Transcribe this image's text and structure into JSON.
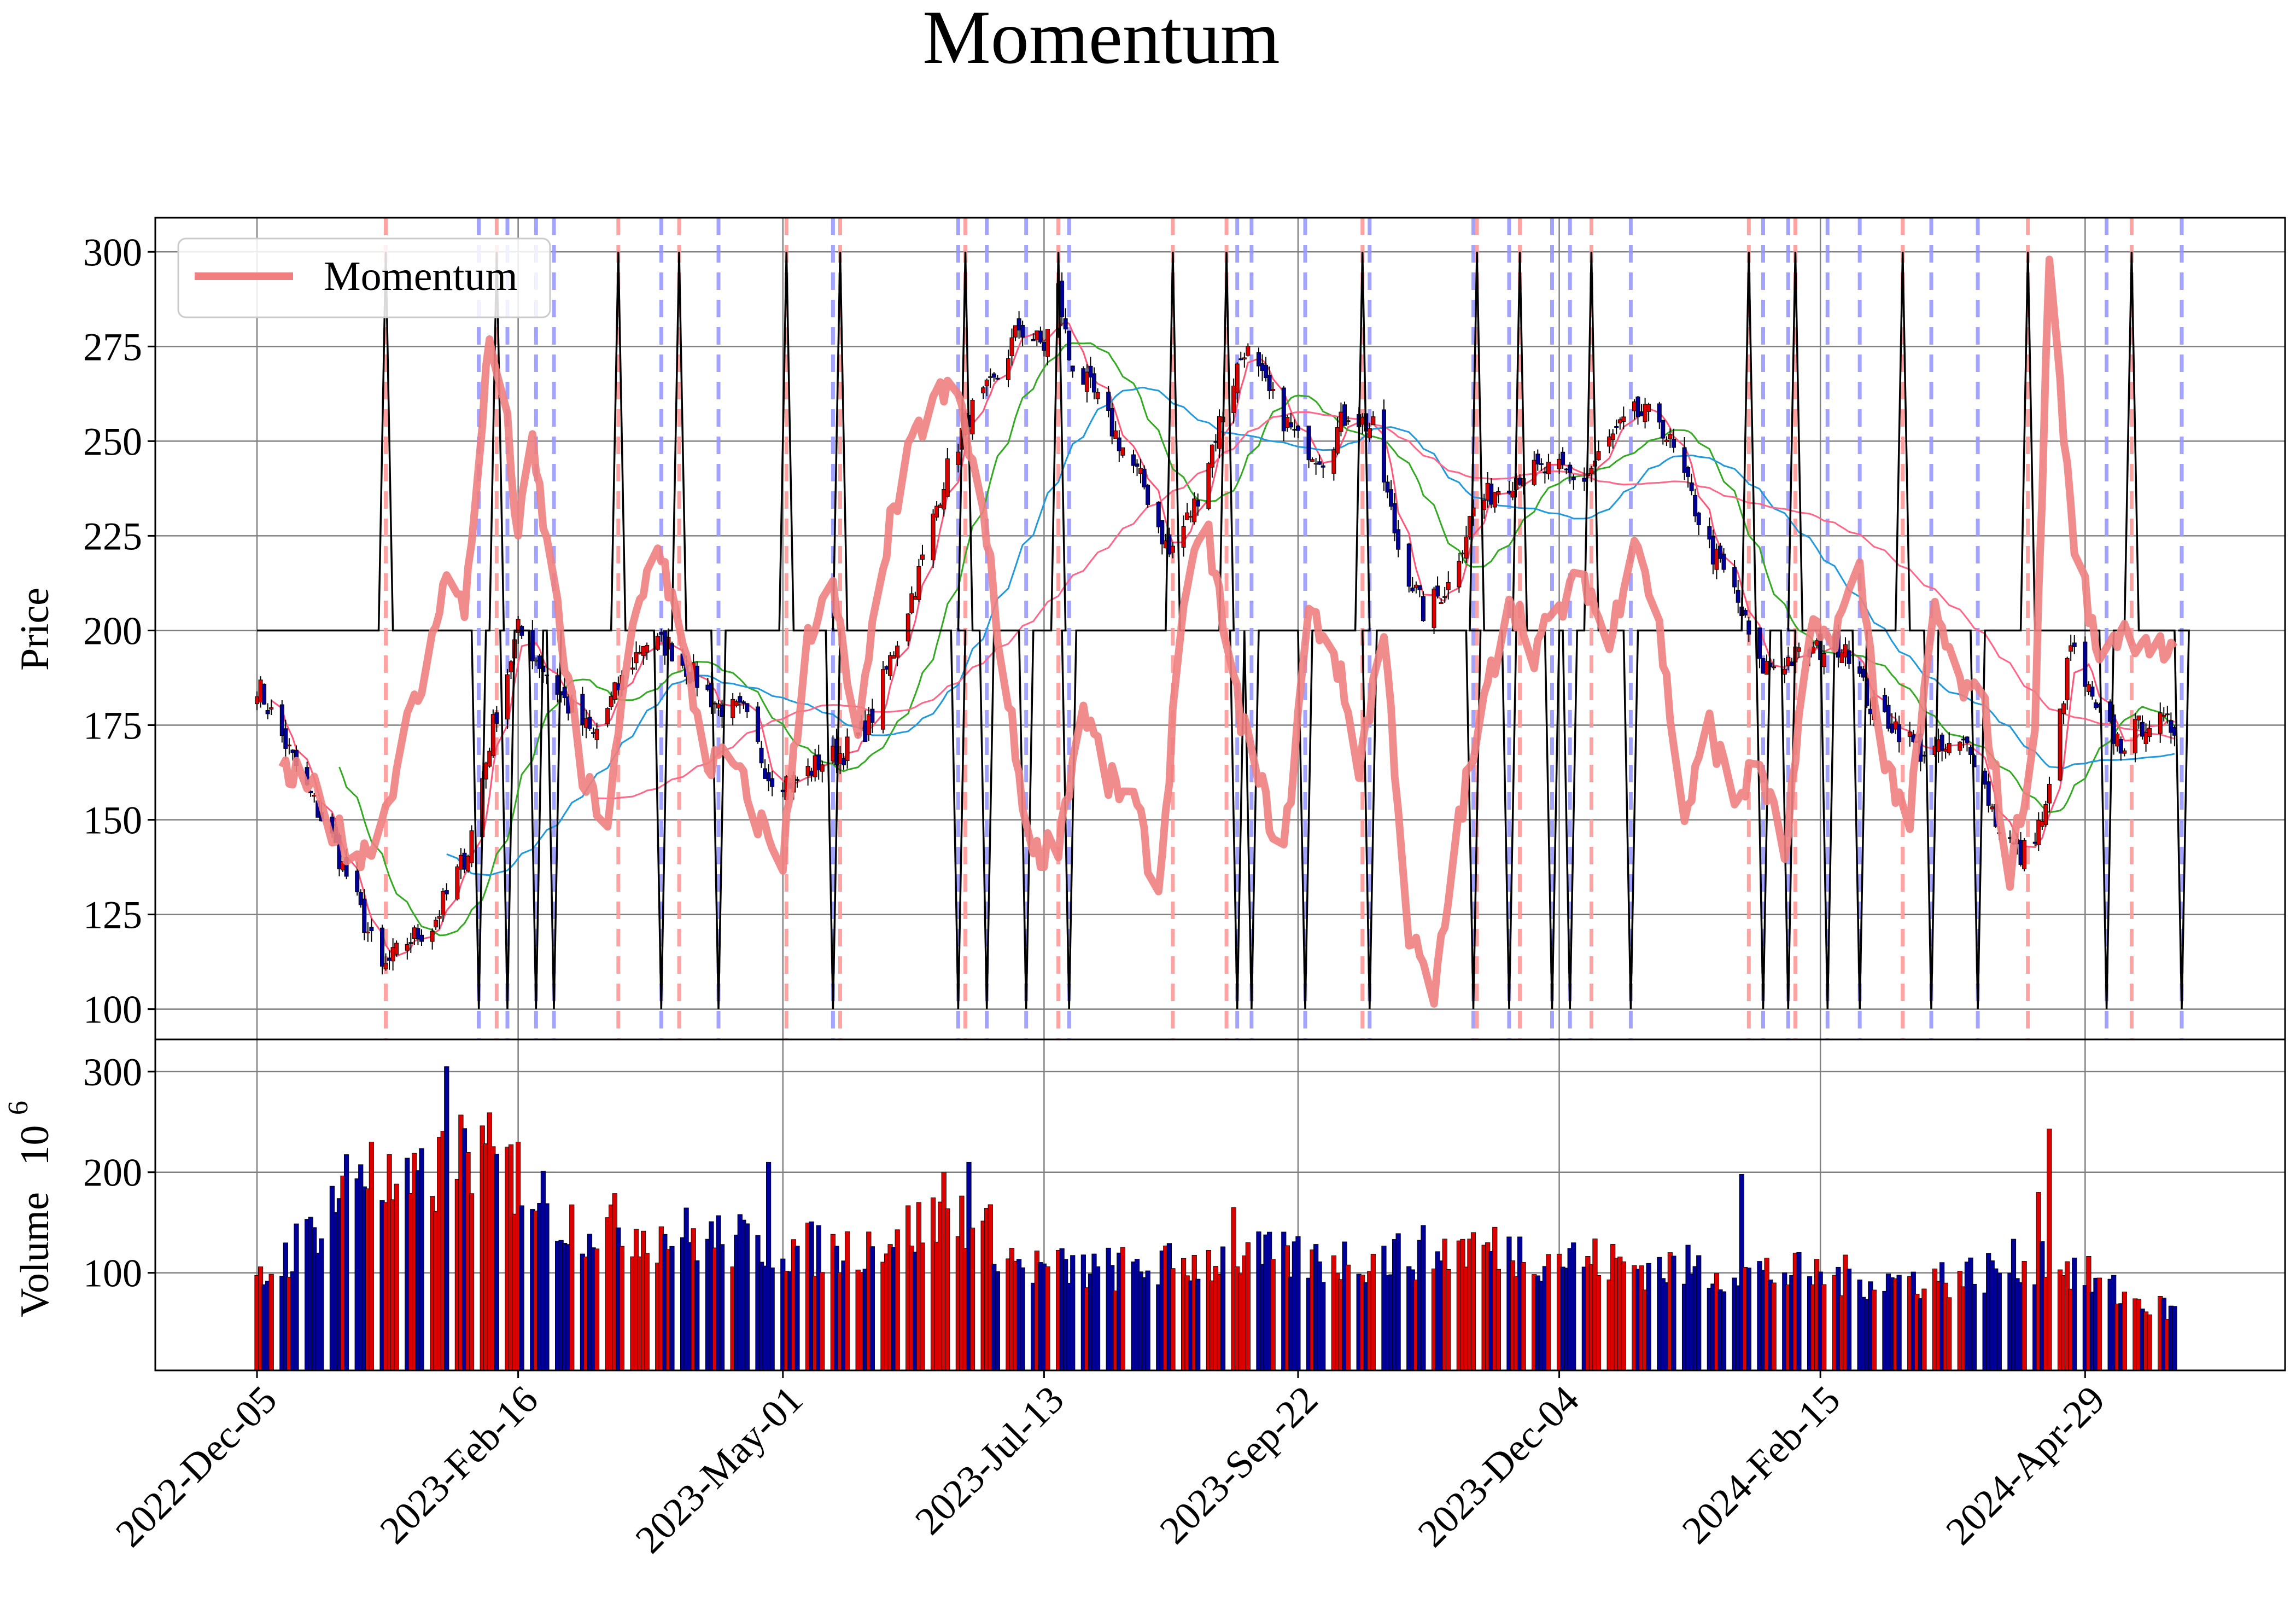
{
  "chart_data": {
    "type": "candlestick",
    "title": "Momentum",
    "price_panel": {
      "ylabel": "Price",
      "ylim": [
        92,
        309
      ],
      "yticks": [
        100,
        125,
        150,
        175,
        200,
        225,
        250,
        275,
        300
      ],
      "legend": {
        "label": "Momentum",
        "placement": "top-left",
        "color": "#f08080"
      },
      "signal_line": {
        "high": 300,
        "mid": 200,
        "low": 100
      }
    },
    "volume_panel": {
      "ylabel": "Volume",
      "exponent_label": "10",
      "exponent_power": "6",
      "ylim": [
        3,
        332
      ],
      "yticks": [
        100,
        200,
        300
      ],
      "up_color": "#dd0000",
      "down_color": "#000099"
    },
    "x_axis": {
      "date_range": [
        "2022-12-05",
        "2024-05-26"
      ],
      "tick_labels": [
        "2022-Dec-05",
        "2023-Feb-16",
        "2023-May-01",
        "2023-Jul-13",
        "2023-Sep-22",
        "2023-Dec-04",
        "2024-Feb-15",
        "2024-Apr-29"
      ],
      "tick_dates": [
        "2022-12-05",
        "2023-02-16",
        "2023-05-01",
        "2023-07-13",
        "2023-09-22",
        "2023-12-04",
        "2024-02-15",
        "2024-04-29"
      ]
    },
    "close_anchors": [
      [
        "2022-12-05",
        186
      ],
      [
        "2022-12-12",
        172
      ],
      [
        "2022-12-19",
        158
      ],
      [
        "2022-12-26",
        145
      ],
      [
        "2023-01-02",
        128
      ],
      [
        "2023-01-09",
        110
      ],
      [
        "2023-01-16",
        118
      ],
      [
        "2023-01-23",
        122
      ],
      [
        "2023-02-02",
        142
      ],
      [
        "2023-02-09",
        175
      ],
      [
        "2023-02-16",
        200
      ],
      [
        "2023-02-23",
        190
      ],
      [
        "2023-03-02",
        180
      ],
      [
        "2023-03-09",
        172
      ],
      [
        "2023-03-16",
        185
      ],
      [
        "2023-03-23",
        197
      ],
      [
        "2023-03-30",
        196
      ],
      [
        "2023-04-06",
        188
      ],
      [
        "2023-04-13",
        180
      ],
      [
        "2023-04-20",
        178
      ],
      [
        "2023-04-27",
        162
      ],
      [
        "2023-05-04",
        160
      ],
      [
        "2023-05-11",
        165
      ],
      [
        "2023-05-18",
        168
      ],
      [
        "2023-05-25",
        175
      ],
      [
        "2023-06-01",
        195
      ],
      [
        "2023-06-08",
        215
      ],
      [
        "2023-06-15",
        240
      ],
      [
        "2023-06-22",
        257
      ],
      [
        "2023-06-29",
        265
      ],
      [
        "2023-07-06",
        280
      ],
      [
        "2023-07-13",
        275
      ],
      [
        "2023-07-17",
        290
      ],
      [
        "2023-07-20",
        272
      ],
      [
        "2023-07-27",
        262
      ],
      [
        "2023-08-03",
        250
      ],
      [
        "2023-08-10",
        238
      ],
      [
        "2023-08-17",
        220
      ],
      [
        "2023-08-24",
        233
      ],
      [
        "2023-08-31",
        255
      ],
      [
        "2023-09-07",
        275
      ],
      [
        "2023-09-14",
        262
      ],
      [
        "2023-09-22",
        250
      ],
      [
        "2023-09-29",
        246
      ],
      [
        "2023-10-06",
        258
      ],
      [
        "2023-10-13",
        253
      ],
      [
        "2023-10-20",
        222
      ],
      [
        "2023-10-27",
        205
      ],
      [
        "2023-11-03",
        212
      ],
      [
        "2023-11-10",
        232
      ],
      [
        "2023-11-17",
        238
      ],
      [
        "2023-11-24",
        242
      ],
      [
        "2023-12-04",
        242
      ],
      [
        "2023-12-11",
        240
      ],
      [
        "2023-12-18",
        250
      ],
      [
        "2023-12-25",
        257
      ],
      [
        "2024-01-01",
        256
      ],
      [
        "2024-01-08",
        240
      ],
      [
        "2024-01-15",
        222
      ],
      [
        "2024-01-22",
        210
      ],
      [
        "2024-01-29",
        190
      ],
      [
        "2024-02-05",
        192
      ],
      [
        "2024-02-15",
        195
      ],
      [
        "2024-02-22",
        197
      ],
      [
        "2024-02-29",
        180
      ],
      [
        "2024-03-07",
        175
      ],
      [
        "2024-03-14",
        168
      ],
      [
        "2024-03-21",
        168
      ],
      [
        "2024-03-28",
        170
      ],
      [
        "2024-04-04",
        150
      ],
      [
        "2024-04-11",
        140
      ],
      [
        "2024-04-18",
        152
      ],
      [
        "2024-04-25",
        196
      ],
      [
        "2024-05-02",
        178
      ],
      [
        "2024-05-09",
        170
      ],
      [
        "2024-05-16",
        176
      ],
      [
        "2024-05-26",
        174
      ]
    ],
    "momentum_anchors": [
      [
        "2022-12-12",
        162
      ],
      [
        "2022-12-19",
        160
      ],
      [
        "2022-12-26",
        148
      ],
      [
        "2023-01-03",
        140
      ],
      [
        "2023-01-09",
        150
      ],
      [
        "2023-01-16",
        175
      ],
      [
        "2023-01-22",
        190
      ],
      [
        "2023-01-26",
        215
      ],
      [
        "2023-02-01",
        205
      ],
      [
        "2023-02-04",
        237
      ],
      [
        "2023-02-08",
        276
      ],
      [
        "2023-02-12",
        262
      ],
      [
        "2023-02-16",
        225
      ],
      [
        "2023-02-20",
        248
      ],
      [
        "2023-02-27",
        205
      ],
      [
        "2023-03-06",
        160
      ],
      [
        "2023-03-13",
        150
      ],
      [
        "2023-03-20",
        200
      ],
      [
        "2023-03-27",
        225
      ],
      [
        "2023-04-03",
        195
      ],
      [
        "2023-04-10",
        165
      ],
      [
        "2023-04-17",
        165
      ],
      [
        "2023-04-24",
        150
      ],
      [
        "2023-05-01",
        140
      ],
      [
        "2023-05-08",
        200
      ],
      [
        "2023-05-15",
        210
      ],
      [
        "2023-05-22",
        170
      ],
      [
        "2023-05-29",
        220
      ],
      [
        "2023-06-05",
        245
      ],
      [
        "2023-06-12",
        262
      ],
      [
        "2023-06-19",
        262
      ],
      [
        "2023-06-26",
        230
      ],
      [
        "2023-07-03",
        180
      ],
      [
        "2023-07-10",
        140
      ],
      [
        "2023-07-17",
        145
      ],
      [
        "2023-07-24",
        180
      ],
      [
        "2023-07-31",
        160
      ],
      [
        "2023-08-07",
        155
      ],
      [
        "2023-08-14",
        130
      ],
      [
        "2023-08-21",
        210
      ],
      [
        "2023-08-28",
        225
      ],
      [
        "2023-09-04",
        185
      ],
      [
        "2023-09-11",
        160
      ],
      [
        "2023-09-18",
        140
      ],
      [
        "2023-09-25",
        205
      ],
      [
        "2023-10-02",
        195
      ],
      [
        "2023-10-09",
        165
      ],
      [
        "2023-10-16",
        200
      ],
      [
        "2023-10-23",
        120
      ],
      [
        "2023-10-30",
        102
      ],
      [
        "2023-11-06",
        150
      ],
      [
        "2023-11-13",
        180
      ],
      [
        "2023-11-20",
        210
      ],
      [
        "2023-11-27",
        195
      ],
      [
        "2023-12-04",
        205
      ],
      [
        "2023-12-11",
        215
      ],
      [
        "2023-12-18",
        195
      ],
      [
        "2023-12-25",
        228
      ],
      [
        "2024-01-01",
        200
      ],
      [
        "2024-01-08",
        150
      ],
      [
        "2024-01-15",
        175
      ],
      [
        "2024-01-22",
        155
      ],
      [
        "2024-01-29",
        165
      ],
      [
        "2024-02-05",
        140
      ],
      [
        "2024-02-12",
        198
      ],
      [
        "2024-02-19",
        200
      ],
      [
        "2024-02-26",
        215
      ],
      [
        "2024-03-04",
        165
      ],
      [
        "2024-03-11",
        150
      ],
      [
        "2024-03-18",
        205
      ],
      [
        "2024-03-25",
        185
      ],
      [
        "2024-04-01",
        180
      ],
      [
        "2024-04-08",
        135
      ],
      [
        "2024-04-15",
        175
      ],
      [
        "2024-04-19",
        300
      ],
      [
        "2024-04-25",
        230
      ],
      [
        "2024-05-02",
        195
      ],
      [
        "2024-05-09",
        200
      ],
      [
        "2024-05-16",
        198
      ],
      [
        "2024-05-26",
        190
      ]
    ],
    "ma_lines": [
      {
        "name": "short",
        "color": "#ff5577",
        "window": 5
      },
      {
        "name": "mid",
        "color": "#33aa22",
        "window": 18
      },
      {
        "name": "long",
        "color": "#2299dd",
        "window": 40
      },
      {
        "name": "longest",
        "color": "#ff6688",
        "window": 70
      }
    ],
    "signals_red": [
      "2023-01-10",
      "2023-02-10",
      "2023-03-16",
      "2023-04-02",
      "2023-05-02",
      "2023-05-17",
      "2023-06-21",
      "2023-07-17",
      "2023-08-18",
      "2023-09-02",
      "2023-10-10",
      "2023-11-11",
      "2023-11-23",
      "2023-12-13",
      "2024-01-26",
      "2024-02-08",
      "2024-03-09",
      "2024-04-13",
      "2024-05-12"
    ],
    "signals_blue": [
      "2023-02-05",
      "2023-02-13",
      "2023-02-21",
      "2023-02-26",
      "2023-03-28",
      "2023-04-13",
      "2023-05-15",
      "2023-06-19",
      "2023-06-27",
      "2023-07-08",
      "2023-07-20",
      "2023-09-05",
      "2023-09-09",
      "2023-09-24",
      "2023-10-12",
      "2023-11-10",
      "2023-11-20",
      "2023-12-02",
      "2023-12-07",
      "2023-12-24",
      "2024-01-30",
      "2024-02-06",
      "2024-02-17",
      "2024-02-26",
      "2024-03-17",
      "2024-03-30",
      "2024-05-05",
      "2024-05-26"
    ],
    "volume_anchors": [
      [
        "2022-12-05",
        90
      ],
      [
        "2022-12-19",
        140
      ],
      [
        "2023-01-02",
        210
      ],
      [
        "2023-01-16",
        180
      ],
      [
        "2023-02-02",
        230
      ],
      [
        "2023-02-09",
        215
      ],
      [
        "2023-02-16",
        200
      ],
      [
        "2023-03-02",
        155
      ],
      [
        "2023-03-16",
        150
      ],
      [
        "2023-04-06",
        140
      ],
      [
        "2023-04-27",
        130
      ],
      [
        "2023-05-18",
        125
      ],
      [
        "2023-06-08",
        150
      ],
      [
        "2023-06-22",
        165
      ],
      [
        "2023-07-06",
        110
      ],
      [
        "2023-07-27",
        105
      ],
      [
        "2023-08-17",
        110
      ],
      [
        "2023-09-07",
        120
      ],
      [
        "2023-09-29",
        115
      ],
      [
        "2023-10-20",
        120
      ],
      [
        "2023-11-10",
        130
      ],
      [
        "2023-12-04",
        120
      ],
      [
        "2023-12-25",
        110
      ],
      [
        "2024-01-22",
        105
      ],
      [
        "2024-02-15",
        100
      ],
      [
        "2024-03-07",
        95
      ],
      [
        "2024-03-28",
        100
      ],
      [
        "2024-04-18",
        120
      ],
      [
        "2024-05-09",
        80
      ],
      [
        "2024-05-26",
        60
      ]
    ],
    "volume_spikes": [
      [
        "2023-01-27",
        305
      ],
      [
        "2023-01-25",
        235
      ],
      [
        "2023-02-16",
        230
      ],
      [
        "2023-04-27",
        210
      ],
      [
        "2023-06-22",
        210
      ],
      [
        "2023-01-06",
        230
      ],
      [
        "2024-01-24",
        198
      ],
      [
        "2024-04-19",
        243
      ],
      [
        "2024-04-16",
        180
      ],
      [
        "2023-09-04",
        165
      ],
      [
        "2023-06-15",
        200
      ]
    ]
  }
}
